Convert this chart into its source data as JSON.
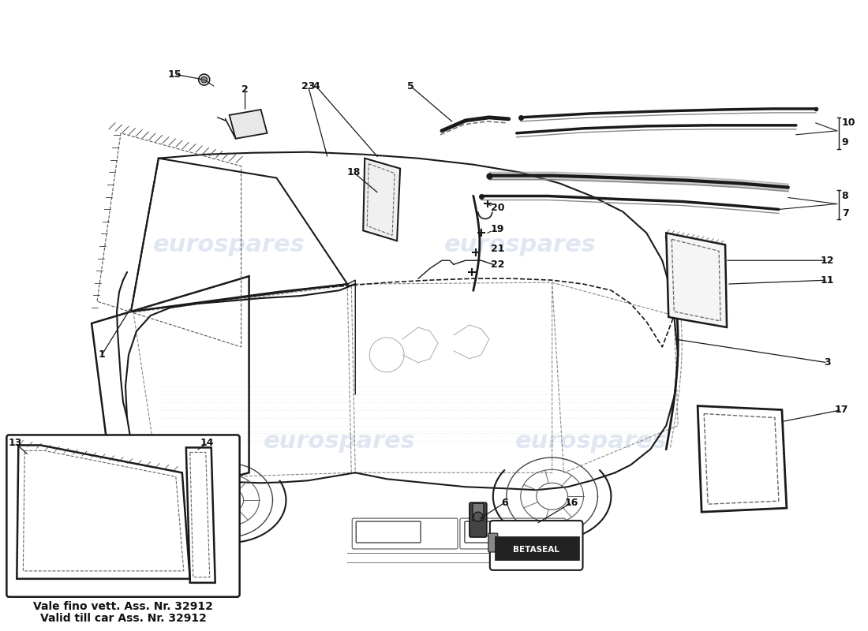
{
  "background_color": "#ffffff",
  "line_color": "#1a1a1a",
  "light_line_color": "#555555",
  "watermark_text": "eurospares",
  "watermark_color": "#c8d4e8",
  "inset_text1": "Vale fino vett. Ass. Nr. 32912",
  "inset_text2": "Valid till car Ass. Nr. 32912",
  "betaseal_text": "BETASEAL"
}
